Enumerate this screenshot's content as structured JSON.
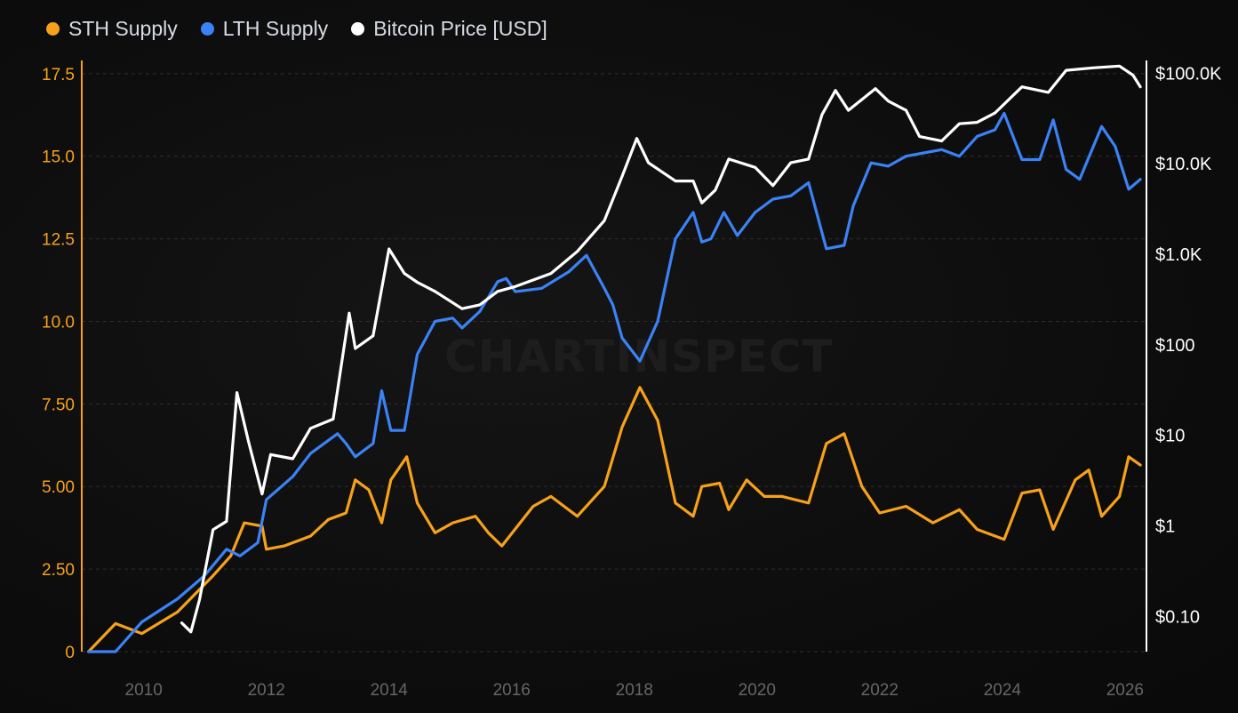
{
  "legend": [
    {
      "label": "STH Supply",
      "color": "#f7a11a"
    },
    {
      "label": "LTH Supply",
      "color": "#3b82f6"
    },
    {
      "label": "Bitcoin Price [USD]",
      "color": "#ffffff"
    }
  ],
  "watermark": "CHARTINSPECT",
  "chart_data": {
    "type": "line",
    "title": "",
    "xlabel": "",
    "x_ticks": [
      "2010",
      "2012",
      "2014",
      "2016",
      "2018",
      "2020",
      "2022",
      "2024",
      "2026"
    ],
    "xlim": [
      2008.99,
      2026.35
    ],
    "left_axis": {
      "label": "",
      "ticks": [
        "0",
        "2.50",
        "5.00",
        "7.50",
        "10.0",
        "12.5",
        "15.0",
        "17.5"
      ],
      "tick_values": [
        0,
        2.5,
        5,
        7.5,
        10,
        12.5,
        15,
        17.5
      ],
      "ylim": [
        0,
        17.9
      ],
      "color": "#f7a11a"
    },
    "right_axis": {
      "label": "",
      "scale": "log",
      "ticks": [
        "$0.10",
        "$1",
        "$10",
        "$100",
        "$1.0K",
        "$10.0K",
        "$100.0K"
      ],
      "tick_values": [
        0.1,
        1,
        10,
        100,
        1000,
        10000,
        100000
      ],
      "ylim": [
        0.04,
        135000
      ],
      "color": "#ffffff"
    },
    "grid": true,
    "legend_position": "top-left",
    "series": [
      {
        "name": "STH Supply",
        "axis": "left",
        "color": "#f7a11a",
        "x": [
          2009.1,
          2009.54,
          2009.97,
          2010.55,
          2011.13,
          2011.42,
          2011.64,
          2011.93,
          2012.0,
          2012.29,
          2012.72,
          2013.01,
          2013.3,
          2013.45,
          2013.67,
          2013.88,
          2014.03,
          2014.29,
          2014.46,
          2014.75,
          2015.04,
          2015.41,
          2015.62,
          2015.84,
          2016.35,
          2016.64,
          2017.07,
          2017.51,
          2017.8,
          2018.09,
          2018.38,
          2018.67,
          2018.96,
          2019.1,
          2019.39,
          2019.54,
          2019.83,
          2020.12,
          2020.41,
          2020.84,
          2021.13,
          2021.42,
          2021.71,
          2022.0,
          2022.43,
          2022.87,
          2023.3,
          2023.59,
          2024.03,
          2024.32,
          2024.61,
          2024.83,
          2025.19,
          2025.41,
          2025.62,
          2025.91,
          2026.06,
          2026.25
        ],
        "y": [
          0,
          0.85,
          0.55,
          1.2,
          2.3,
          2.9,
          3.9,
          3.8,
          3.1,
          3.2,
          3.5,
          4.0,
          4.2,
          5.2,
          4.9,
          3.9,
          5.2,
          5.9,
          4.5,
          3.6,
          3.9,
          4.1,
          3.6,
          3.2,
          4.4,
          4.7,
          4.1,
          5.0,
          6.8,
          8.0,
          7.0,
          4.5,
          4.1,
          5.0,
          5.1,
          4.3,
          5.2,
          4.7,
          4.7,
          4.5,
          6.3,
          6.6,
          5.0,
          4.2,
          4.4,
          3.9,
          4.3,
          3.7,
          3.4,
          4.8,
          4.9,
          3.7,
          5.2,
          5.5,
          4.1,
          4.7,
          5.9,
          5.65
        ]
      },
      {
        "name": "LTH Supply",
        "axis": "left",
        "color": "#3b82f6",
        "x": [
          2009.1,
          2009.54,
          2009.97,
          2010.55,
          2010.99,
          2011.35,
          2011.57,
          2011.86,
          2012.0,
          2012.43,
          2012.72,
          2013.16,
          2013.3,
          2013.45,
          2013.74,
          2013.88,
          2014.03,
          2014.25,
          2014.46,
          2014.75,
          2015.04,
          2015.19,
          2015.48,
          2015.77,
          2015.91,
          2016.06,
          2016.49,
          2016.93,
          2017.22,
          2017.51,
          2017.65,
          2017.8,
          2018.09,
          2018.38,
          2018.67,
          2018.96,
          2019.1,
          2019.25,
          2019.46,
          2019.68,
          2019.97,
          2020.26,
          2020.55,
          2020.84,
          2021.13,
          2021.42,
          2021.57,
          2021.86,
          2022.14,
          2022.43,
          2022.72,
          2023.01,
          2023.3,
          2023.59,
          2023.88,
          2024.03,
          2024.32,
          2024.61,
          2024.83,
          2025.04,
          2025.26,
          2025.62,
          2025.84,
          2026.06,
          2026.25
        ],
        "y": [
          0,
          0,
          0.9,
          1.6,
          2.3,
          3.1,
          2.9,
          3.3,
          4.6,
          5.3,
          6.0,
          6.6,
          6.3,
          5.9,
          6.3,
          7.9,
          6.7,
          6.7,
          9.0,
          10.0,
          10.1,
          9.8,
          10.3,
          11.2,
          11.3,
          10.9,
          11.0,
          11.5,
          12.0,
          11.0,
          10.5,
          9.5,
          8.8,
          10.0,
          12.5,
          13.3,
          12.4,
          12.5,
          13.3,
          12.6,
          13.3,
          13.7,
          13.8,
          14.2,
          12.2,
          12.3,
          13.5,
          14.8,
          14.7,
          15.0,
          15.1,
          15.2,
          15.0,
          15.6,
          15.8,
          16.3,
          14.9,
          14.9,
          16.1,
          14.6,
          14.3,
          15.9,
          15.3,
          14.0,
          14.3
        ]
      },
      {
        "name": "Bitcoin Price [USD]",
        "axis": "right",
        "color": "#ffffff",
        "x": [
          2010.62,
          2010.77,
          2010.91,
          2011.13,
          2011.35,
          2011.52,
          2011.71,
          2011.93,
          2012.07,
          2012.43,
          2012.72,
          2013.09,
          2013.35,
          2013.45,
          2013.74,
          2014.0,
          2014.25,
          2014.46,
          2014.75,
          2015.19,
          2015.48,
          2015.77,
          2016.06,
          2016.64,
          2017.07,
          2017.51,
          2017.8,
          2018.04,
          2018.23,
          2018.67,
          2018.96,
          2019.1,
          2019.32,
          2019.54,
          2019.97,
          2020.26,
          2020.55,
          2020.84,
          2021.06,
          2021.28,
          2021.49,
          2021.93,
          2022.14,
          2022.43,
          2022.65,
          2023.01,
          2023.3,
          2023.59,
          2023.88,
          2024.32,
          2024.75,
          2025.04,
          2025.48,
          2025.91,
          2026.13,
          2026.25
        ],
        "y": [
          0.083,
          0.066,
          0.15,
          0.89,
          1.1,
          29,
          8.3,
          2.2,
          6.0,
          5.4,
          11.7,
          14.8,
          219,
          89,
          123,
          1120,
          600,
          480,
          380,
          245,
          270,
          380,
          430,
          600,
          1050,
          2300,
          7100,
          18600,
          10000,
          6300,
          6300,
          3600,
          5000,
          11000,
          8900,
          5600,
          10000,
          11000,
          34000,
          63000,
          38000,
          66000,
          48000,
          38000,
          19500,
          17400,
          27000,
          28000,
          35500,
          69000,
          60000,
          105000,
          112000,
          117000,
          93000,
          69000
        ]
      }
    ]
  }
}
